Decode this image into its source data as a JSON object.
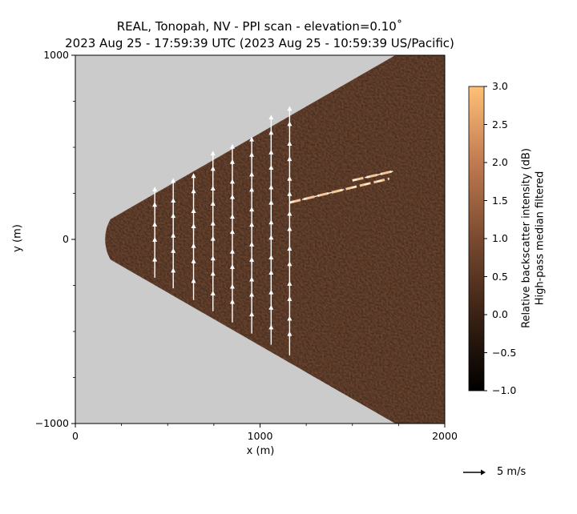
{
  "chart_data": {
    "type": "heatmap",
    "title_line1": "REAL, Tonopah, NV - PPI scan - elevation=0.10˚",
    "title_line2": "2023 Aug 25 - 17:59:39 UTC (2023 Aug 25 - 10:59:39 US/Pacific)",
    "xlabel": "x (m)",
    "ylabel": "y (m)",
    "xlim": [
      0,
      2000
    ],
    "ylim": [
      -1000,
      1000
    ],
    "x_ticks": [
      "0",
      "1000",
      "2000"
    ],
    "y_ticks": [
      "1000",
      "0",
      "−1000"
    ],
    "x_tick_values": [
      0,
      1000,
      2000
    ],
    "y_tick_values": [
      1000,
      0,
      -1000
    ],
    "scan": {
      "min_range_m": 220,
      "max_range_m": 2000,
      "half_angle_deg": 30
    },
    "colorbar": {
      "label_line1": "Relative backscatter intensity (dB)",
      "label_line2": "High-pass median filtered",
      "range": [
        -1.0,
        3.0
      ],
      "ticks": [
        "3.0",
        "2.5",
        "2.0",
        "1.5",
        "1.0",
        "0.5",
        "0.0",
        "−0.5",
        "−1.0"
      ],
      "tick_values": [
        3.0,
        2.5,
        2.0,
        1.5,
        1.0,
        0.5,
        0.0,
        -0.5,
        -1.0
      ],
      "colors": [
        "#000000",
        "#3a2214",
        "#7a4a30",
        "#c07a50",
        "#ffc078"
      ]
    },
    "vector_key": {
      "label": "5 m/s",
      "value": 5
    },
    "wind_vectors": {
      "columns_x": [
        430,
        530,
        640,
        745,
        850,
        955,
        1060,
        1160
      ],
      "u": 0.0,
      "v_range": [
        4.5,
        5.5
      ]
    },
    "plume_annotations": [
      {
        "x1": 1160,
        "y1": 200,
        "x2": 1700,
        "y2": 330
      },
      {
        "x1": 1500,
        "y1": 320,
        "x2": 1720,
        "y2": 370
      }
    ],
    "background_color": "#cbcbcb"
  }
}
